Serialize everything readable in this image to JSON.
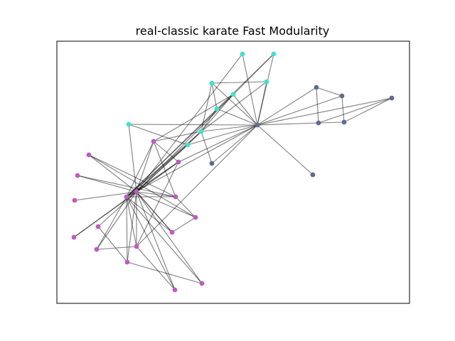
{
  "title": "real-classic karate Fast Modularity",
  "colors": {
    "edge": "#000000",
    "community_magenta": "#bf5bbf",
    "community_cyan": "#40e0d0",
    "community_slate": "#5f6a91"
  },
  "legend": "none",
  "axes_ticks": "none",
  "nodes": [
    {
      "id": "n0",
      "community": "slate"
    },
    {
      "id": "n1",
      "community": "slate"
    },
    {
      "id": "n2",
      "community": "slate"
    },
    {
      "id": "n3",
      "community": "slate"
    },
    {
      "id": "n4",
      "community": "slate"
    },
    {
      "id": "n5",
      "community": "slate"
    },
    {
      "id": "n6",
      "community": "slate"
    },
    {
      "id": "n7",
      "community": "slate"
    },
    {
      "id": "n8",
      "community": "cyan"
    },
    {
      "id": "n9",
      "community": "cyan"
    },
    {
      "id": "n10",
      "community": "cyan"
    },
    {
      "id": "n11",
      "community": "cyan"
    },
    {
      "id": "n12",
      "community": "cyan"
    },
    {
      "id": "n13",
      "community": "cyan"
    },
    {
      "id": "n14",
      "community": "cyan"
    },
    {
      "id": "n15",
      "community": "cyan"
    },
    {
      "id": "n16",
      "community": "cyan"
    },
    {
      "id": "n17",
      "community": "magenta"
    },
    {
      "id": "n18",
      "community": "magenta"
    },
    {
      "id": "n19",
      "community": "magenta"
    },
    {
      "id": "n20",
      "community": "magenta"
    },
    {
      "id": "n21",
      "community": "magenta"
    },
    {
      "id": "n22",
      "community": "magenta"
    },
    {
      "id": "n23",
      "community": "magenta"
    },
    {
      "id": "n24",
      "community": "magenta"
    },
    {
      "id": "n25",
      "community": "magenta"
    },
    {
      "id": "n26",
      "community": "magenta"
    },
    {
      "id": "n27",
      "community": "magenta"
    },
    {
      "id": "n28",
      "community": "magenta"
    },
    {
      "id": "n29",
      "community": "magenta"
    },
    {
      "id": "n30",
      "community": "magenta"
    },
    {
      "id": "n31",
      "community": "magenta"
    },
    {
      "id": "n32",
      "community": "magenta"
    },
    {
      "id": "n33",
      "community": "magenta"
    }
  ],
  "edges": [
    [
      "n0",
      "n1"
    ],
    [
      "n0",
      "n2"
    ],
    [
      "n0",
      "n6"
    ],
    [
      "n0",
      "n7"
    ],
    [
      "n0",
      "n8"
    ],
    [
      "n0",
      "n9"
    ],
    [
      "n0",
      "n10"
    ],
    [
      "n0",
      "n11"
    ],
    [
      "n0",
      "n12"
    ],
    [
      "n0",
      "n13"
    ],
    [
      "n0",
      "n14"
    ],
    [
      "n0",
      "n15"
    ],
    [
      "n0",
      "n16"
    ],
    [
      "n0",
      "n17"
    ],
    [
      "n0",
      "n20"
    ],
    [
      "n0",
      "n29"
    ],
    [
      "n0",
      "n5"
    ],
    [
      "n1",
      "n2"
    ],
    [
      "n1",
      "n3"
    ],
    [
      "n2",
      "n4"
    ],
    [
      "n3",
      "n4"
    ],
    [
      "n3",
      "n5"
    ],
    [
      "n4",
      "n5"
    ],
    [
      "n3",
      "n0"
    ],
    [
      "n11",
      "n14"
    ],
    [
      "n11",
      "n13"
    ],
    [
      "n11",
      "n10"
    ],
    [
      "n10",
      "n14"
    ],
    [
      "n13",
      "n14"
    ],
    [
      "n14",
      "n15"
    ],
    [
      "n15",
      "n17"
    ],
    [
      "n16",
      "n15"
    ],
    [
      "n14",
      "n17"
    ],
    [
      "n14",
      "n19"
    ],
    [
      "n14",
      "n18"
    ],
    [
      "n12",
      "n14"
    ],
    [
      "n12",
      "n17"
    ],
    [
      "n9",
      "n17"
    ],
    [
      "n8",
      "n18"
    ],
    [
      "n14",
      "n7"
    ],
    [
      "n15",
      "n18"
    ],
    [
      "n17",
      "n18"
    ],
    [
      "n17",
      "n19"
    ],
    [
      "n17",
      "n20"
    ],
    [
      "n17",
      "n24"
    ],
    [
      "n17",
      "n28"
    ],
    [
      "n17",
      "n29"
    ],
    [
      "n17",
      "n30"
    ],
    [
      "n17",
      "n31"
    ],
    [
      "n17",
      "n32"
    ],
    [
      "n17",
      "n33"
    ],
    [
      "n18",
      "n19"
    ],
    [
      "n18",
      "n20"
    ],
    [
      "n18",
      "n21"
    ],
    [
      "n18",
      "n22"
    ],
    [
      "n18",
      "n23"
    ],
    [
      "n18",
      "n24"
    ],
    [
      "n18",
      "n25"
    ],
    [
      "n18",
      "n26"
    ],
    [
      "n18",
      "n27"
    ],
    [
      "n18",
      "n28"
    ],
    [
      "n18",
      "n29"
    ],
    [
      "n18",
      "n30"
    ],
    [
      "n18",
      "n31"
    ],
    [
      "n18",
      "n32"
    ],
    [
      "n18",
      "n33"
    ],
    [
      "n19",
      "n20"
    ],
    [
      "n21",
      "n25"
    ],
    [
      "n28",
      "n29"
    ],
    [
      "n29",
      "n32"
    ],
    [
      "n30",
      "n33"
    ],
    [
      "n31",
      "n18"
    ],
    [
      "n16",
      "n18"
    ],
    [
      "n12",
      "n19"
    ],
    [
      "n20",
      "n27"
    ],
    [
      "n21",
      "n24"
    ],
    [
      "n24",
      "n25"
    ],
    [
      "n20",
      "n29"
    ],
    [
      "n19",
      "n24"
    ],
    [
      "n25",
      "n31"
    ],
    [
      "n22",
      "n24"
    ],
    [
      "n26",
      "n30"
    ],
    [
      "n9",
      "n18"
    ]
  ]
}
